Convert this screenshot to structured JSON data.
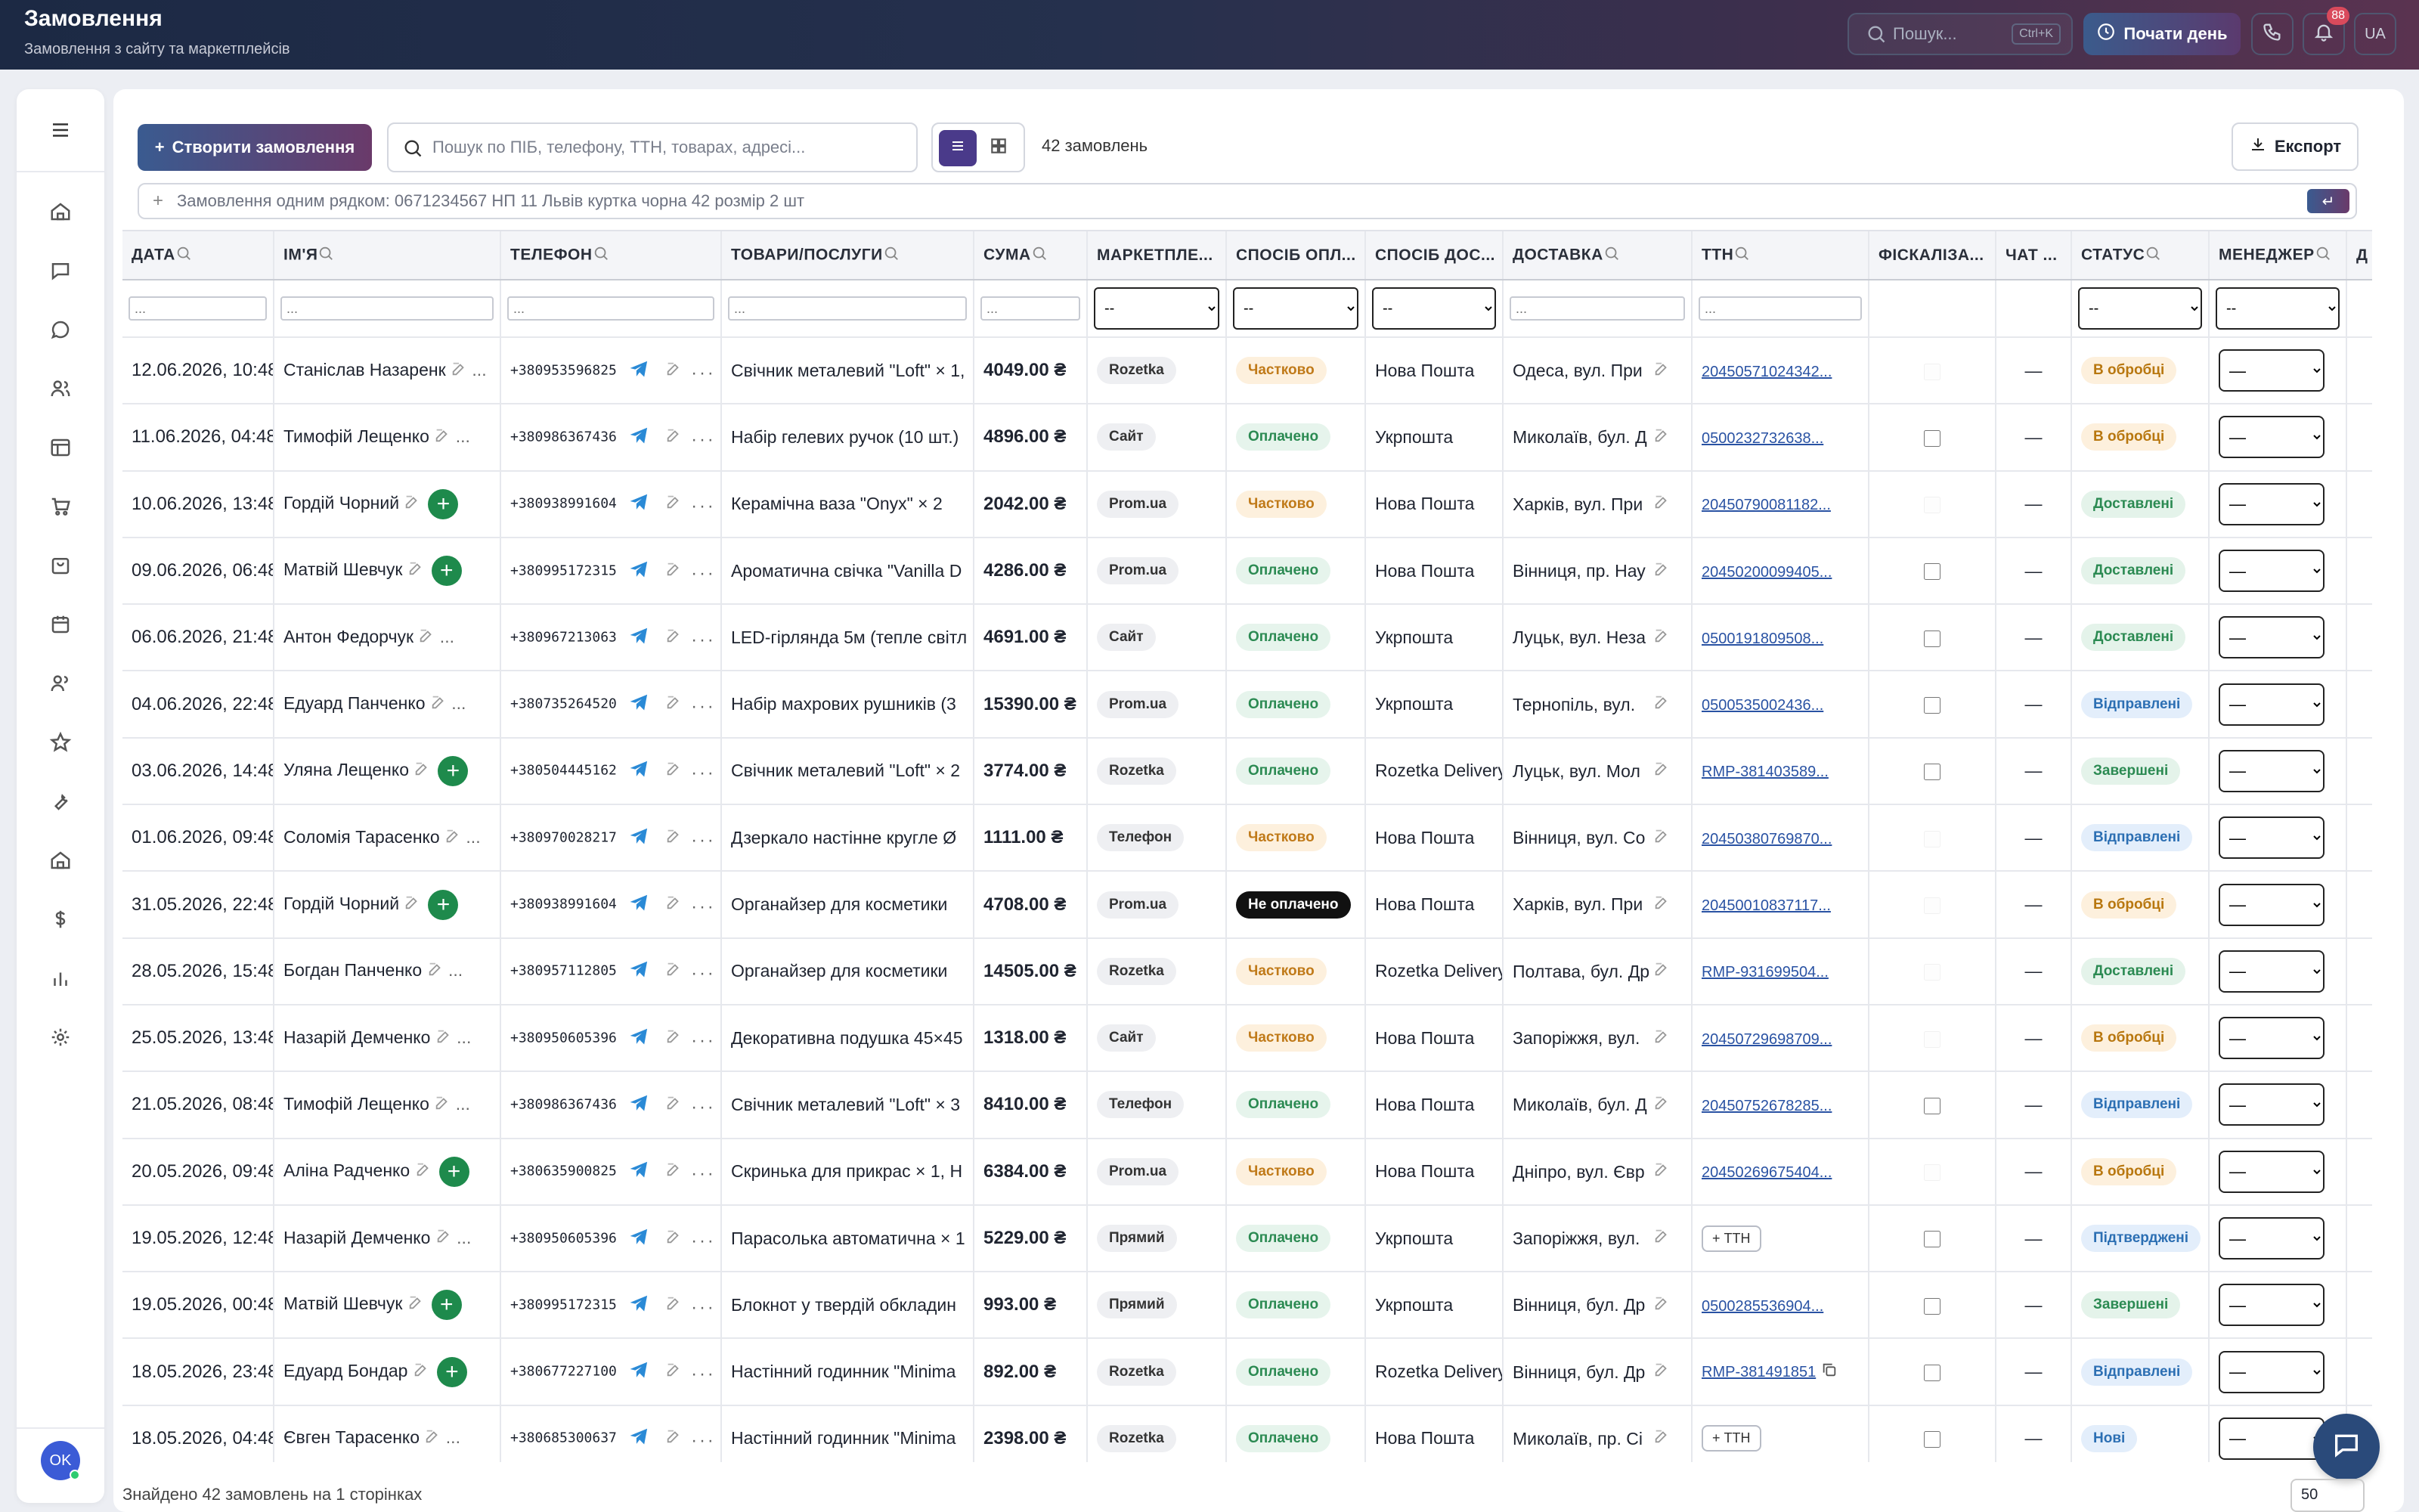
{
  "header": {
    "title": "Замовлення",
    "subtitle": "Замовлення з сайту та маркетплейсів",
    "search_placeholder": "Пошук...",
    "search_shortcut": "Ctrl+K",
    "start_day_label": "Почати день",
    "notifications_count": "88",
    "language": "UA"
  },
  "sidebar": {
    "items": [
      "menu-icon",
      "home-icon",
      "chat-icon",
      "message-icon",
      "users-icon",
      "layout-icon",
      "cart-icon",
      "box-icon",
      "calendar-icon",
      "team-icon",
      "star-icon",
      "wrench-icon",
      "warehouse-icon",
      "dollar-icon",
      "chart-icon",
      "gear-icon"
    ],
    "avatar_initials": "OK"
  },
  "toolbar": {
    "create_label": "Створити замовлення",
    "search_placeholder": "Пошук по ПІБ, телефону, ТТН, товарах, адресі...",
    "orders_count": "42 замовлень",
    "export_label": "Експорт",
    "quick_placeholder": "Замовлення одним рядком: 0671234567 НП 11 Львів куртка чорна 42 розмір 2 шт"
  },
  "table": {
    "headers": [
      "ДАТА",
      "ІМ'Я",
      "ТЕЛЕФОН",
      "ТОВАРИ/ПОСЛУГИ",
      "СУМА",
      "МАРКЕТПЛЕ...",
      "СПОСІБ ОПЛ...",
      "СПОСІБ ДОС...",
      "ДОСТАВКА",
      "ТТН",
      "ФІСКАЛІЗА...",
      "ЧАТ ...",
      "СТАТУС",
      "МЕНЕДЖЕР",
      "Д"
    ],
    "filter_placeholder": "...",
    "select_default": "--",
    "manager_default": "—",
    "add_ttn_label": "+ ТТН",
    "rows": [
      {
        "date": "12.06.2026, 10:48",
        "name": "Станіслав Назаренк",
        "phone": "+380953596825",
        "goods": "Свічник металевий \"Loft\" × 1, ",
        "sum": "4049.00 ₴",
        "mk": "Rozetka",
        "pay": "Частково",
        "payc": "partial",
        "del": "Нова Пошта",
        "addr": "Одеса, вул. При",
        "ttn": "20450571024342...",
        "fisc": "dis",
        "status": "В обробці",
        "stc": "proc",
        "add": false
      },
      {
        "date": "11.06.2026, 04:48",
        "name": "Тимофій Лещенко",
        "phone": "+380986367436",
        "goods": "Набір гелевих ручок (10 шт.)",
        "sum": "4896.00 ₴",
        "mk": "Сайт",
        "pay": "Оплачено",
        "payc": "paid",
        "del": "Укрпошта",
        "addr": "Миколаїв, бул. Д",
        "ttn": "0500232732638...",
        "fisc": "on",
        "status": "В обробці",
        "stc": "proc",
        "add": false
      },
      {
        "date": "10.06.2026, 13:48",
        "name": "Гордій Чорний",
        "phone": "+380938991604",
        "goods": "Керамічна ваза \"Onyx\" × 2",
        "sum": "2042.00 ₴",
        "mk": "Prom.ua",
        "pay": "Частково",
        "payc": "partial",
        "del": "Нова Пошта",
        "addr": "Харків, вул. При",
        "ttn": "20450790081182...",
        "fisc": "dis",
        "status": "Доставлені",
        "stc": "done",
        "add": true
      },
      {
        "date": "09.06.2026, 06:48",
        "name": "Матвій Шевчук",
        "phone": "+380995172315",
        "goods": "Ароматична свічка \"Vanilla D",
        "sum": "4286.00 ₴",
        "mk": "Prom.ua",
        "pay": "Оплачено",
        "payc": "paid",
        "del": "Нова Пошта",
        "addr": "Вінниця, пр. Нау",
        "ttn": "20450200099405...",
        "fisc": "on",
        "status": "Доставлені",
        "stc": "done",
        "add": true
      },
      {
        "date": "06.06.2026, 21:48",
        "name": "Антон Федорчук",
        "phone": "+380967213063",
        "goods": "LED-гірлянда 5м (тепле світл",
        "sum": "4691.00 ₴",
        "mk": "Сайт",
        "pay": "Оплачено",
        "payc": "paid",
        "del": "Укрпошта",
        "addr": "Луцьк, вул. Неза",
        "ttn": "0500191809508...",
        "fisc": "on",
        "status": "Доставлені",
        "stc": "done",
        "add": false
      },
      {
        "date": "04.06.2026, 22:48",
        "name": "Едуард Панченко",
        "phone": "+380735264520",
        "goods": "Набір махрових рушників (3",
        "sum": "15390.00 ₴",
        "mk": "Prom.ua",
        "pay": "Оплачено",
        "payc": "paid",
        "del": "Укрпошта",
        "addr": "Тернопіль, вул. ",
        "ttn": "0500535002436...",
        "fisc": "on",
        "status": "Відправлені",
        "stc": "sent",
        "add": false
      },
      {
        "date": "03.06.2026, 14:48",
        "name": "Уляна Лещенко",
        "phone": "+380504445162",
        "goods": "Свічник металевий \"Loft\" × 2",
        "sum": "3774.00 ₴",
        "mk": "Rozetka",
        "pay": "Оплачено",
        "payc": "paid",
        "del": "Rozetka Delivery",
        "addr": "Луцьк, вул. Мол",
        "ttn": "RMP-381403589...",
        "fisc": "on",
        "status": "Завершені",
        "stc": "done",
        "add": true
      },
      {
        "date": "01.06.2026, 09:48",
        "name": "Соломія Тарасенко",
        "phone": "+380970028217",
        "goods": "Дзеркало настінне кругле Ø",
        "sum": "1111.00 ₴",
        "mk": "Телефон",
        "pay": "Частково",
        "payc": "partial",
        "del": "Нова Пошта",
        "addr": "Вінниця, вул. Со",
        "ttn": "20450380769870...",
        "fisc": "dis",
        "status": "Відправлені",
        "stc": "sent",
        "add": false
      },
      {
        "date": "31.05.2026, 22:48",
        "name": "Гордій Чорний",
        "phone": "+380938991604",
        "goods": "Органайзер для косметики ",
        "sum": "4708.00 ₴",
        "mk": "Prom.ua",
        "pay": "Не оплачено",
        "payc": "unpaid",
        "del": "Нова Пошта",
        "addr": "Харків, вул. При",
        "ttn": "20450010837117...",
        "fisc": "dis",
        "status": "В обробці",
        "stc": "proc",
        "add": true
      },
      {
        "date": "28.05.2026, 15:48",
        "name": "Богдан Панченко",
        "phone": "+380957112805",
        "goods": "Органайзер для косметики ",
        "sum": "14505.00 ₴",
        "mk": "Rozetka",
        "pay": "Частково",
        "payc": "partial",
        "del": "Rozetka Delivery",
        "addr": "Полтава, бул. Др",
        "ttn": "RMP-931699504...",
        "fisc": "dis",
        "status": "Доставлені",
        "stc": "done",
        "add": false
      },
      {
        "date": "25.05.2026, 13:48",
        "name": "Назарій Демченко",
        "phone": "+380950605396",
        "goods": "Декоративна подушка 45×45",
        "sum": "1318.00 ₴",
        "mk": "Сайт",
        "pay": "Частково",
        "payc": "partial",
        "del": "Нова Пошта",
        "addr": "Запоріжжя, вул.",
        "ttn": "20450729698709...",
        "fisc": "dis",
        "status": "В обробці",
        "stc": "proc",
        "add": false
      },
      {
        "date": "21.05.2026, 08:48",
        "name": "Тимофій Лещенко",
        "phone": "+380986367436",
        "goods": "Свічник металевий \"Loft\" × 3",
        "sum": "8410.00 ₴",
        "mk": "Телефон",
        "pay": "Оплачено",
        "payc": "paid",
        "del": "Нова Пошта",
        "addr": "Миколаїв, бул. Д",
        "ttn": "20450752678285...",
        "fisc": "on",
        "status": "Відправлені",
        "stc": "sent",
        "add": false
      },
      {
        "date": "20.05.2026, 09:48",
        "name": "Аліна Радченко",
        "phone": "+380635900825",
        "goods": "Скринька для прикрас × 1, Н",
        "sum": "6384.00 ₴",
        "mk": "Prom.ua",
        "pay": "Частково",
        "payc": "partial",
        "del": "Нова Пошта",
        "addr": "Дніпро, вул. Євр",
        "ttn": "20450269675404...",
        "fisc": "dis",
        "status": "В обробці",
        "stc": "proc",
        "add": true
      },
      {
        "date": "19.05.2026, 12:48",
        "name": "Назарій Демченко",
        "phone": "+380950605396",
        "goods": "Парасолька автоматична × 1",
        "sum": "5229.00 ₴",
        "mk": "Прямий",
        "pay": "Оплачено",
        "payc": "paid",
        "del": "Укрпошта",
        "addr": "Запоріжжя, вул.",
        "ttn": "",
        "fisc": "on",
        "status": "Підтверджені",
        "stc": "conf",
        "add": false
      },
      {
        "date": "19.05.2026, 00:48",
        "name": "Матвій Шевчук",
        "phone": "+380995172315",
        "goods": "Блокнот у твердій обкладин",
        "sum": "993.00 ₴",
        "mk": "Прямий",
        "pay": "Оплачено",
        "payc": "paid",
        "del": "Укрпошта",
        "addr": "Вінниця, бул. Др",
        "ttn": "0500285536904...",
        "fisc": "on",
        "status": "Завершені",
        "stc": "done",
        "add": true
      },
      {
        "date": "18.05.2026, 23:48",
        "name": "Едуард Бондар",
        "phone": "+380677227100",
        "goods": "Настінний годинник \"Minima",
        "sum": "892.00 ₴",
        "mk": "Rozetka",
        "pay": "Оплачено",
        "payc": "paid",
        "del": "Rozetka Delivery",
        "addr": "Вінниця, бул. Др",
        "ttn": "RMP-381491851",
        "fisc": "on",
        "status": "Відправлені",
        "stc": "sent",
        "add": true
      },
      {
        "date": "18.05.2026, 04:48",
        "name": "Євген Тарасенко",
        "phone": "+380685300637",
        "goods": "Настінний годинник \"Minima",
        "sum": "2398.00 ₴",
        "mk": "Rozetka",
        "pay": "Оплачено",
        "payc": "paid",
        "del": "Нова Пошта",
        "addr": "Миколаїв, пр. Сі",
        "ttn": "",
        "fisc": "on",
        "status": "Нові",
        "stc": "new",
        "add": false
      }
    ]
  },
  "footer": {
    "summary": "Знайдено 42 замовлень на 1 сторінках",
    "page_size": "50"
  }
}
